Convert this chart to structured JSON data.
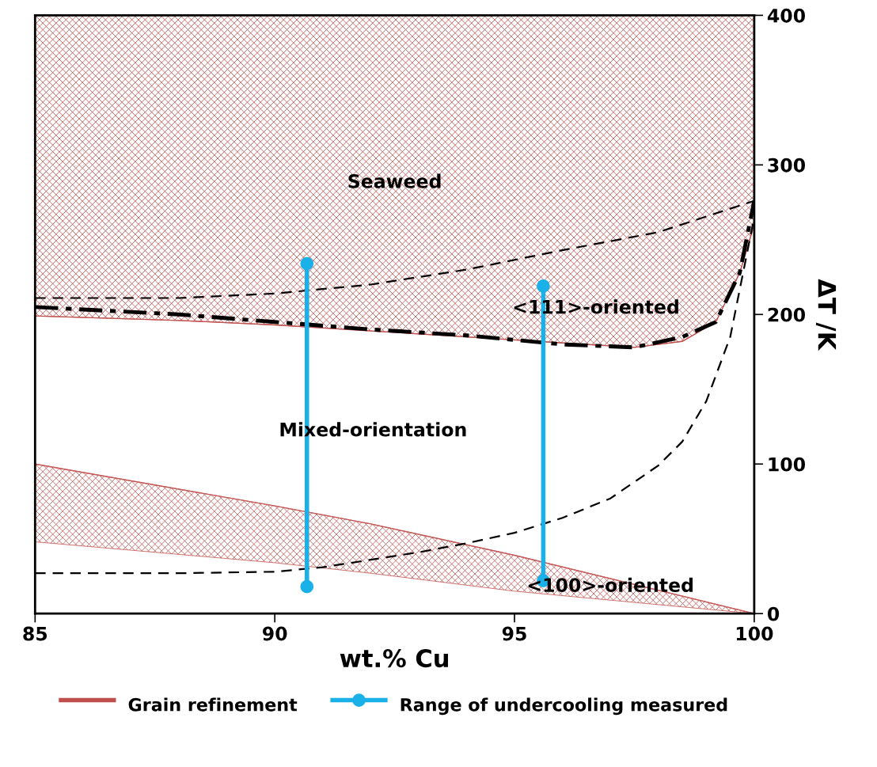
{
  "chart_data": {
    "type": "line",
    "xlabel": "wt.% Cu",
    "ylabel": "ΔT /K",
    "xlim": [
      85,
      100
    ],
    "xticks": [
      85,
      90,
      95,
      100
    ],
    "ylim": [
      0,
      400
    ],
    "yticks": [
      0,
      100,
      200,
      300,
      400
    ],
    "grid": false,
    "legend": "bottom",
    "marker": "none",
    "series": [
      {
        "name": "Grain refinement",
        "color": "#c0504d",
        "line_style": "solid",
        "x": [
          85,
          88,
          90,
          92,
          94,
          96,
          97,
          97.5,
          98.5,
          99.2,
          99.7,
          100
        ],
        "values": [
          199,
          196,
          193,
          189,
          185,
          181,
          179,
          178,
          182,
          195,
          228,
          260
        ],
        "lower": [
          199,
          196,
          193,
          189,
          185,
          181,
          179,
          178,
          182,
          195,
          228,
          260
        ],
        "upper": [
          400,
          400,
          400,
          400,
          400,
          400,
          400,
          400,
          400,
          400,
          400,
          400
        ]
      },
      {
        "color": "#c55a57",
        "line_style": "solid",
        "x": [
          85,
          90,
          92,
          95,
          100
        ],
        "values": [
          100,
          72,
          60,
          39,
          0
        ],
        "lower": [
          48,
          34,
          27,
          15,
          0
        ],
        "upper": [
          100,
          72,
          60,
          39,
          0
        ]
      },
      {
        "color": "#000000",
        "line_style": "dashed",
        "x": [
          85,
          88,
          90,
          92,
          94,
          96,
          98,
          100
        ],
        "values": [
          211,
          211,
          214,
          220,
          230,
          243,
          255,
          276
        ]
      },
      {
        "color": "#000000",
        "line_style": "dashdot",
        "x": [
          85,
          88,
          90,
          92,
          94,
          96,
          97.5,
          98.5,
          99.2,
          99.7,
          100
        ],
        "values": [
          205,
          200,
          195,
          190,
          186,
          180,
          178,
          185,
          195,
          228,
          276
        ]
      },
      {
        "color": "#000000",
        "line_style": "dashed",
        "x": [
          85,
          88,
          90,
          91,
          92,
          93,
          94,
          95,
          96,
          97,
          98,
          98.5,
          99,
          99.5,
          99.8,
          100
        ],
        "values": [
          27,
          27,
          28,
          31,
          36,
          41,
          47,
          54,
          64,
          77,
          99,
          115,
          142,
          185,
          233,
          265
        ]
      },
      {
        "name": "Range of undercooling measured",
        "color": "#1ab0e8",
        "marker": "circle",
        "x": [
          90.67,
          90.67
        ],
        "values": [
          18,
          234
        ]
      },
      {
        "color": "#1ab0e8",
        "marker": "circle",
        "x": [
          95.6,
          95.6
        ],
        "values": [
          22,
          219
        ]
      }
    ],
    "annotations": [
      "Seaweed",
      "<111>-oriented",
      "Mixed-orientation",
      "<100>-oriented"
    ]
  }
}
